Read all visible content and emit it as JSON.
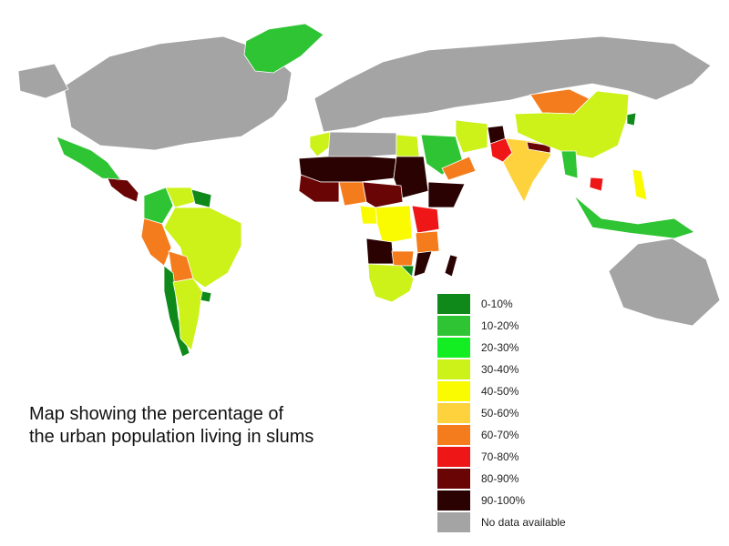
{
  "caption": {
    "line1": "Map showing the percentage of",
    "line2": "the urban population living in slums"
  },
  "legend": [
    {
      "label": "0-10%",
      "color": "#0f8a1a"
    },
    {
      "label": "10-20%",
      "color": "#2fc433"
    },
    {
      "label": "20-30%",
      "color": "#12ee22"
    },
    {
      "label": "30-40%",
      "color": "#ccf21a"
    },
    {
      "label": "40-50%",
      "color": "#fafa00"
    },
    {
      "label": "50-60%",
      "color": "#fed23c"
    },
    {
      "label": "60-70%",
      "color": "#f47c1c"
    },
    {
      "label": "70-80%",
      "color": "#ee1616"
    },
    {
      "label": "80-90%",
      "color": "#6a0505"
    },
    {
      "label": "90-100%",
      "color": "#2a0202"
    },
    {
      "label": "No data available",
      "color": "#a4a4a4"
    }
  ],
  "regions": [
    {
      "name": "Greenland",
      "bin": "10-20%"
    },
    {
      "name": "North America",
      "bin": "No data available"
    },
    {
      "name": "Mexico",
      "bin": "10-20%"
    },
    {
      "name": "Central America",
      "bin": "80-90%"
    },
    {
      "name": "Colombia",
      "bin": "10-20%"
    },
    {
      "name": "Venezuela",
      "bin": "30-40%"
    },
    {
      "name": "Guianas",
      "bin": "0-10%"
    },
    {
      "name": "Peru",
      "bin": "60-70%"
    },
    {
      "name": "Brazil",
      "bin": "30-40%"
    },
    {
      "name": "Bolivia",
      "bin": "60-70%"
    },
    {
      "name": "Chile",
      "bin": "0-10%"
    },
    {
      "name": "Argentina",
      "bin": "30-40%"
    },
    {
      "name": "Uruguay",
      "bin": "0-10%"
    },
    {
      "name": "Europe and Russia",
      "bin": "No data available"
    },
    {
      "name": "Morocco",
      "bin": "30-40%"
    },
    {
      "name": "Algeria and Libya",
      "bin": "No data available"
    },
    {
      "name": "Egypt",
      "bin": "30-40%"
    },
    {
      "name": "Sahel",
      "bin": "90-100%"
    },
    {
      "name": "Sudan",
      "bin": "90-100%"
    },
    {
      "name": "West Africa coast",
      "bin": "80-90%"
    },
    {
      "name": "Nigeria",
      "bin": "60-70%"
    },
    {
      "name": "Central Africa",
      "bin": "80-90%"
    },
    {
      "name": "Gabon",
      "bin": "40-50%"
    },
    {
      "name": "DR Congo",
      "bin": "40-50%"
    },
    {
      "name": "Ethiopia",
      "bin": "90-100%"
    },
    {
      "name": "East Africa",
      "bin": "70-80%"
    },
    {
      "name": "Tanzania",
      "bin": "60-70%"
    },
    {
      "name": "Angola",
      "bin": "90-100%"
    },
    {
      "name": "Zambia",
      "bin": "60-70%"
    },
    {
      "name": "Mozambique",
      "bin": "90-100%"
    },
    {
      "name": "Zimbabwe",
      "bin": "0-10%"
    },
    {
      "name": "Southern Africa",
      "bin": "30-40%"
    },
    {
      "name": "Madagascar",
      "bin": "90-100%"
    },
    {
      "name": "Saudi Arabia",
      "bin": "10-20%"
    },
    {
      "name": "Yemen and Oman",
      "bin": "60-70%"
    },
    {
      "name": "Iran",
      "bin": "30-40%"
    },
    {
      "name": "Afghanistan",
      "bin": "90-100%"
    },
    {
      "name": "Pakistan",
      "bin": "70-80%"
    },
    {
      "name": "India",
      "bin": "50-60%"
    },
    {
      "name": "Nepal and Bangladesh",
      "bin": "80-90%"
    },
    {
      "name": "Mongolia",
      "bin": "60-70%"
    },
    {
      "name": "China",
      "bin": "30-40%"
    },
    {
      "name": "North Korea",
      "bin": "0-10%"
    },
    {
      "name": "Myanmar",
      "bin": "10-20%"
    },
    {
      "name": "Cambodia",
      "bin": "70-80%"
    },
    {
      "name": "Philippines",
      "bin": "40-50%"
    },
    {
      "name": "Indonesia",
      "bin": "10-20%"
    },
    {
      "name": "Australia",
      "bin": "No data available"
    }
  ]
}
